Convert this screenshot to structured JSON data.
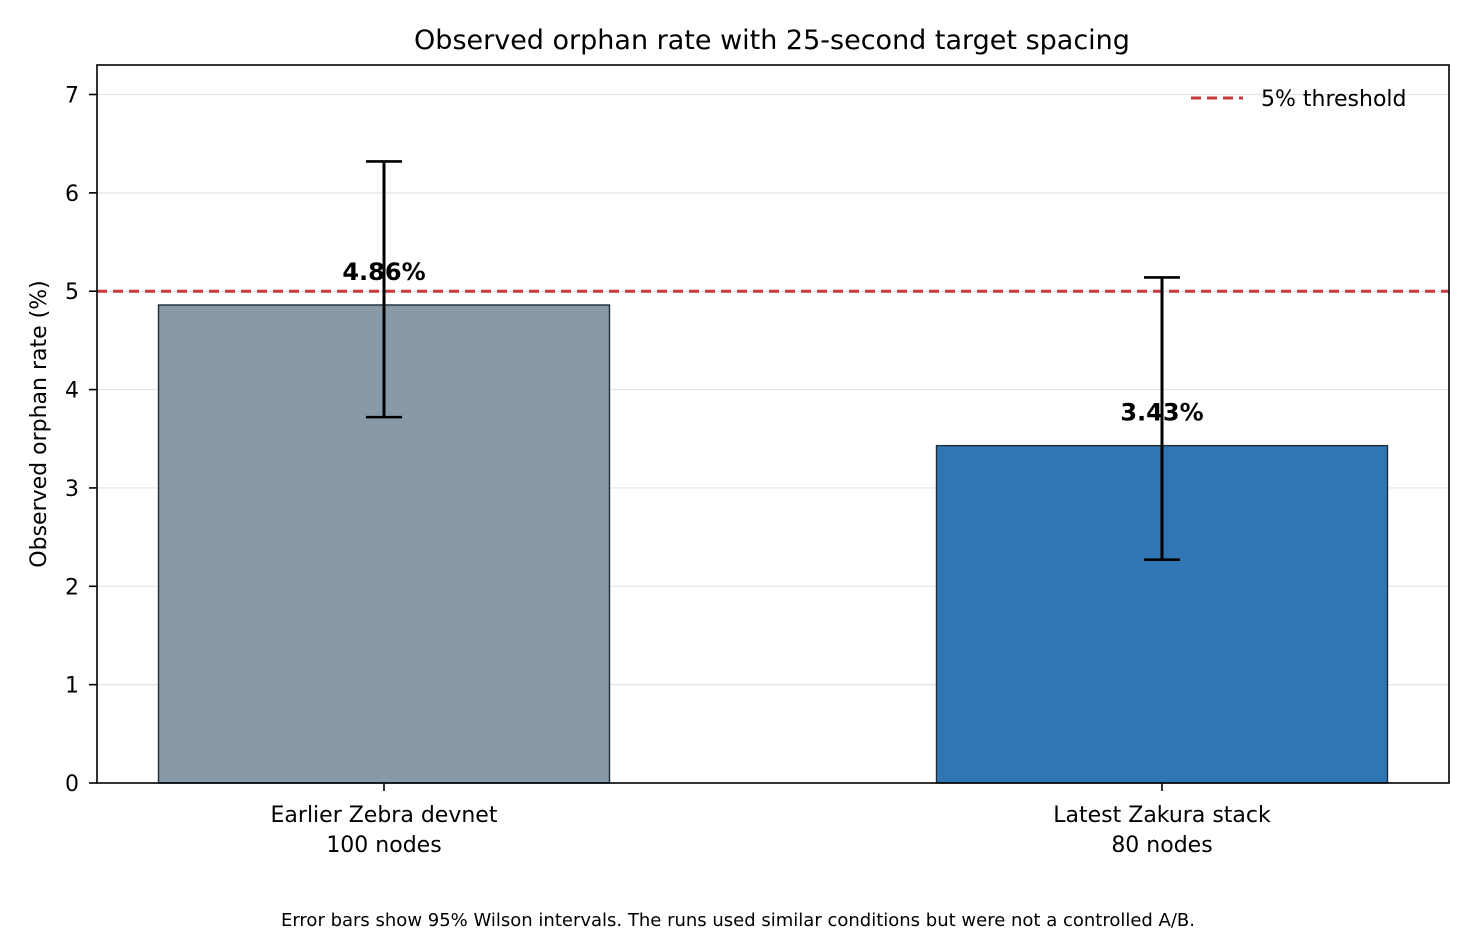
{
  "chart_data": {
    "type": "bar",
    "title": "Observed orphan rate with 25-second target spacing",
    "ylabel": "Observed orphan rate (%)",
    "xlabel": "",
    "ylim": [
      0,
      7.3
    ],
    "yticks": [
      0,
      1,
      2,
      3,
      4,
      5,
      6,
      7
    ],
    "grid": "horizontal",
    "categories": [
      {
        "line1": "Earlier Zebra devnet",
        "line2": "100 nodes"
      },
      {
        "line1": "Latest Zakura stack",
        "line2": "80 nodes"
      }
    ],
    "values": [
      4.86,
      3.43
    ],
    "data_labels": [
      "4.86%",
      "3.43%"
    ],
    "error_bars": [
      {
        "low": 3.72,
        "high": 6.32
      },
      {
        "low": 2.27,
        "high": 5.14
      }
    ],
    "bar_colors": [
      "#8899a8",
      "#3176b4"
    ],
    "threshold": {
      "value": 5,
      "label": "5% threshold",
      "color": "#c53a3a",
      "style": "dashed"
    },
    "legend_position": "top-right",
    "footnote": "Error bars show 95% Wilson intervals. The runs used similar conditions but were not a controlled A/B."
  }
}
